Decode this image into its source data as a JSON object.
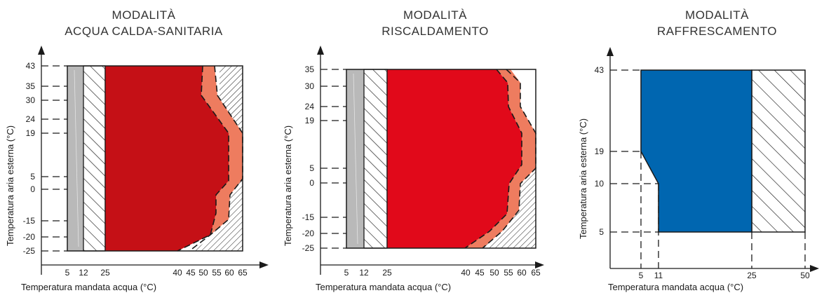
{
  "colors": {
    "grey": "#b9b9b9",
    "dhw_main": "#c51016",
    "heat_main": "#e1091a",
    "extension": "#ee7c5f",
    "cool_main": "#0066b0",
    "line": "#1a1a1a"
  },
  "panels": [
    {
      "title_line1": "MODALITÀ",
      "title_line2": "ACQUA CALDA-SANITARIA",
      "ylabel": "Temperatura aria esterna (°C)",
      "xlabel": "Temperatura mandata acqua (°C)",
      "yticks": [
        "43",
        "35",
        "30",
        "24",
        "19",
        "5",
        "0",
        "-15",
        "-20",
        "-25"
      ],
      "xticks": [
        "5",
        "12",
        "25",
        "40",
        "45",
        "50",
        "55",
        "60",
        "65"
      ]
    },
    {
      "title_line1": "MODALITÀ",
      "title_line2": "RISCALDAMENTO",
      "ylabel": "Temperatura aria esterna (°C)",
      "xlabel": "Temperatura mandata acqua (°C)",
      "yticks": [
        "35",
        "30",
        "24",
        "19",
        "5",
        "0",
        "-15",
        "-20",
        "-25"
      ],
      "xticks": [
        "5",
        "12",
        "25",
        "40",
        "45",
        "50",
        "55",
        "60",
        "65"
      ]
    },
    {
      "title_line1": "MODALITÀ",
      "title_line2": "RAFFRESCAMENTO",
      "ylabel": "Temperatura aria esterna (°C)",
      "xlabel": "Temperatura mandata acqua (°C)",
      "yticks": [
        "43",
        "19",
        "10",
        "5"
      ],
      "xticks": [
        "5",
        "11",
        "25",
        "50"
      ]
    }
  ]
}
